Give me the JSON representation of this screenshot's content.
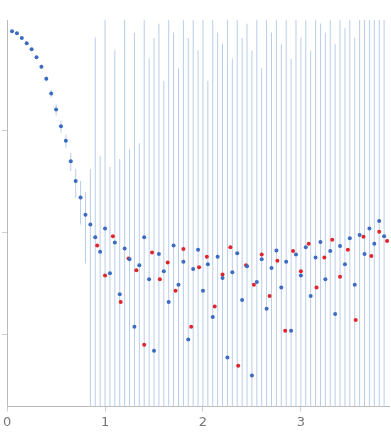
{
  "chart_data": {
    "type": "scatter",
    "xlim": [
      0,
      3.9
    ],
    "xticks": [
      0,
      1,
      2,
      3
    ],
    "ylim": [
      0.0002,
      1.2
    ],
    "yticks": [
      0.001,
      0.01,
      0.1
    ],
    "log": "y",
    "grid": false,
    "tick_labels": "x",
    "series": [
      {
        "color": "#3b6cc2",
        "marker": "circle",
        "x": [
          0.05,
          0.1,
          0.15,
          0.2,
          0.25,
          0.3,
          0.35,
          0.4,
          0.45,
          0.5,
          0.55,
          0.6,
          0.65,
          0.7,
          0.75,
          0.8,
          0.85,
          0.9,
          0.95,
          1.0,
          1.05,
          1.1,
          1.15,
          1.2,
          1.25,
          1.3,
          1.35,
          1.4,
          1.45,
          1.5,
          1.55,
          1.6,
          1.65,
          1.7,
          1.75,
          1.8,
          1.85,
          1.9,
          1.95,
          2.0,
          2.05,
          2.1,
          2.15,
          2.2,
          2.25,
          2.3,
          2.35,
          2.4,
          2.45,
          2.5,
          2.55,
          2.6,
          2.65,
          2.7,
          2.75,
          2.8,
          2.85,
          2.9,
          2.95,
          3.0,
          3.05,
          3.1,
          3.15,
          3.2,
          3.25,
          3.3,
          3.35,
          3.4,
          3.45,
          3.5,
          3.55,
          3.6,
          3.65,
          3.7,
          3.75,
          3.8,
          3.85
        ],
        "values": [
          0.93,
          0.89,
          0.8,
          0.71,
          0.62,
          0.52,
          0.42,
          0.32,
          0.23,
          0.16,
          0.11,
          0.079,
          0.05,
          0.032,
          0.022,
          0.015,
          0.012,
          0.009,
          0.0065,
          0.011,
          0.004,
          0.008,
          0.0025,
          0.007,
          0.0055,
          0.0012,
          0.0048,
          0.009,
          0.0035,
          0.0007,
          0.0062,
          0.0042,
          0.0021,
          0.0075,
          0.0031,
          0.0052,
          0.0009,
          0.0044,
          0.0068,
          0.0027,
          0.0049,
          0.0015,
          0.0058,
          0.0036,
          0.0006,
          0.0041,
          0.0063,
          0.0022,
          0.0047,
          0.0004,
          0.0033,
          0.0055,
          0.0018,
          0.0045,
          0.0067,
          0.0029,
          0.0052,
          0.0011,
          0.0061,
          0.0038,
          0.0072,
          0.0024,
          0.0057,
          0.0081,
          0.0035,
          0.0066,
          0.0016,
          0.0074,
          0.0049,
          0.0088,
          0.0031,
          0.0095,
          0.0062,
          0.011,
          0.0078,
          0.013,
          0.0092
        ],
        "error": [
          0.02,
          0.02,
          0.02,
          0.02,
          0.02,
          0.02,
          0.02,
          0.02,
          0.02,
          0.02,
          0.015,
          0.012,
          0.01,
          0.01,
          0.01,
          0.01,
          0.03,
          0.8,
          0.05,
          1.5,
          0.04,
          0.6,
          0.05,
          1.2,
          0.06,
          0.9,
          0.07,
          1.5,
          0.5,
          0.8,
          1.1,
          0.3,
          1.5,
          0.9,
          0.4,
          1.3,
          0.8,
          1.5,
          0.6,
          1.2,
          0.3,
          1.5,
          0.9,
          0.7,
          1.4,
          0.5,
          1.5,
          0.8,
          1.1,
          0.6,
          1.5,
          0.4,
          1.3,
          0.9,
          1.5,
          0.7,
          1.2,
          0.5,
          1.5,
          0.8,
          1.4,
          0.6,
          1.5,
          1.1,
          0.9,
          1.5,
          0.7,
          1.5,
          1.0,
          1.5,
          0.8,
          1.5,
          1.2,
          1.5,
          1.5,
          1.5,
          1.5
        ]
      },
      {
        "color": "#e0262c",
        "marker": "circle",
        "x": [
          0.92,
          1.0,
          1.08,
          1.16,
          1.24,
          1.32,
          1.4,
          1.48,
          1.56,
          1.64,
          1.72,
          1.8,
          1.88,
          1.96,
          2.04,
          2.12,
          2.2,
          2.28,
          2.36,
          2.44,
          2.52,
          2.6,
          2.68,
          2.76,
          2.84,
          2.92,
          3.0,
          3.08,
          3.16,
          3.24,
          3.32,
          3.4,
          3.48,
          3.56,
          3.64,
          3.72,
          3.8,
          3.88
        ],
        "values": [
          0.0075,
          0.0038,
          0.0092,
          0.0021,
          0.0056,
          0.0043,
          0.0008,
          0.0064,
          0.0035,
          0.0051,
          0.0027,
          0.0069,
          0.0012,
          0.0046,
          0.0058,
          0.0019,
          0.0039,
          0.0072,
          0.0005,
          0.0048,
          0.0031,
          0.0061,
          0.0024,
          0.0053,
          0.0011,
          0.0066,
          0.0042,
          0.0078,
          0.0029,
          0.0057,
          0.0085,
          0.0037,
          0.0068,
          0.0014,
          0.0091,
          0.0059,
          0.0102,
          0.0083
        ]
      }
    ]
  }
}
